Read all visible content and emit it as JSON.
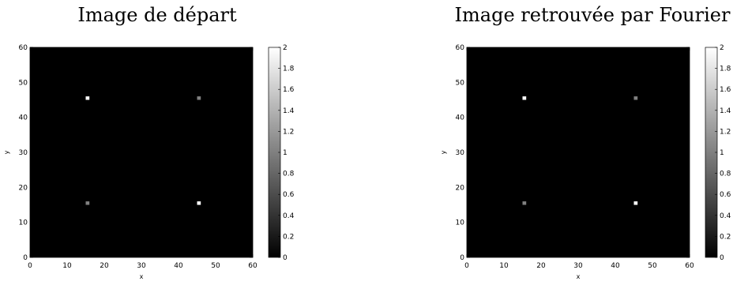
{
  "chart_data": [
    {
      "type": "heatmap",
      "title": "Image de départ",
      "xlabel": "x",
      "ylabel": "y",
      "xlim": [
        0,
        60
      ],
      "ylim": [
        0,
        60
      ],
      "xticks": [
        "0",
        "10",
        "20",
        "30",
        "40",
        "50",
        "60"
      ],
      "yticks": [
        "0",
        "10",
        "20",
        "30",
        "40",
        "50",
        "60"
      ],
      "background_value": 0,
      "points": [
        {
          "x": 15.5,
          "y": 45.5,
          "value": 2
        },
        {
          "x": 45.5,
          "y": 45.5,
          "value": 1
        },
        {
          "x": 15.5,
          "y": 15.5,
          "value": 1
        },
        {
          "x": 45.5,
          "y": 15.5,
          "value": 2
        }
      ],
      "colorbar": {
        "range": [
          0,
          2
        ],
        "ticks": [
          "0",
          "0.2",
          "0.4",
          "0.6",
          "0.8",
          "1",
          "1.2",
          "1.4",
          "1.6",
          "1.8",
          "2"
        ],
        "colormap": "gray"
      }
    },
    {
      "type": "heatmap",
      "title": "Image retrouvée par Fourier",
      "xlabel": "x",
      "ylabel": "y",
      "xlim": [
        0,
        60
      ],
      "ylim": [
        0,
        60
      ],
      "xticks": [
        "0",
        "10",
        "20",
        "30",
        "40",
        "50",
        "60"
      ],
      "yticks": [
        "0",
        "10",
        "20",
        "30",
        "40",
        "50",
        "60"
      ],
      "background_value": 0,
      "points": [
        {
          "x": 15.5,
          "y": 45.5,
          "value": 2
        },
        {
          "x": 45.5,
          "y": 45.5,
          "value": 1
        },
        {
          "x": 15.5,
          "y": 15.5,
          "value": 1
        },
        {
          "x": 45.5,
          "y": 15.5,
          "value": 2
        }
      ],
      "colorbar": {
        "range": [
          0,
          2
        ],
        "ticks": [
          "0",
          "0.2",
          "0.4",
          "0.6",
          "0.8",
          "1",
          "1.2",
          "1.4",
          "1.6",
          "1.8",
          "2"
        ],
        "colormap": "gray"
      }
    }
  ]
}
